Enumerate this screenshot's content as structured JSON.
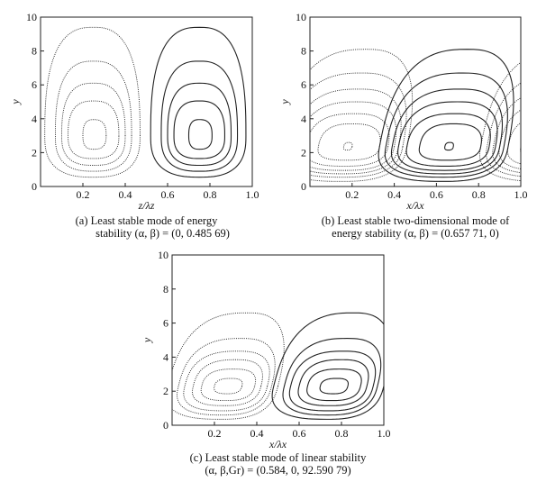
{
  "chart_data": [
    {
      "type": "contour",
      "id": "a",
      "xlabel": "z/λz",
      "ylabel": "y",
      "xlim": [
        0,
        1
      ],
      "ylim": [
        0,
        10
      ],
      "xticks": [
        "0.2",
        "0.4",
        "0.6",
        "0.8",
        "1.0"
      ],
      "yticks": [
        "0",
        "2",
        "4",
        "6",
        "8",
        "10"
      ],
      "caption": [
        "(a) Least stable mode of energy",
        "stability (α, β) = (0, 0.485 69)"
      ],
      "cells": [
        {
          "sign": "negative",
          "style": "dotted",
          "center": [
            0.25,
            3.0
          ],
          "skew": 0,
          "contours": [
            [
              0.2,
              0.31,
              2.2,
              3.95
            ],
            [
              0.13,
              0.37,
              1.65,
              5.05
            ],
            [
              0.1,
              0.4,
              1.25,
              6.1
            ],
            [
              0.07,
              0.43,
              0.9,
              7.4
            ],
            [
              0.02,
              0.47,
              0.55,
              9.4
            ]
          ]
        },
        {
          "sign": "positive",
          "style": "solid",
          "center": [
            0.75,
            3.0
          ],
          "skew": 0,
          "contours": [
            [
              0.7,
              0.81,
              2.2,
              3.95
            ],
            [
              0.63,
              0.87,
              1.65,
              5.05
            ],
            [
              0.6,
              0.9,
              1.25,
              6.1
            ],
            [
              0.57,
              0.93,
              0.9,
              7.4
            ],
            [
              0.52,
              0.97,
              0.55,
              9.4
            ]
          ]
        }
      ]
    },
    {
      "type": "contour",
      "id": "b",
      "xlabel": "x/λx",
      "ylabel": "y",
      "xlim": [
        0,
        1
      ],
      "ylim": [
        0,
        10
      ],
      "xticks": [
        "0.2",
        "0.4",
        "0.6",
        "0.8",
        "1.0"
      ],
      "yticks": [
        "0",
        "2",
        "4",
        "6",
        "8",
        "10"
      ],
      "caption": [
        "(b) Least stable two-dimensional mode of",
        "energy stability (α, β) = (0.657 71, 0)"
      ],
      "cells": [
        {
          "sign": "negative",
          "style": "dotted",
          "center": [
            0.18,
            2.35
          ],
          "skew": 0.015,
          "contours": [
            [
              0.16,
              0.2,
              2.15,
              2.6
            ],
            [
              0.04,
              0.33,
              1.55,
              3.7
            ],
            [
              -0.02,
              0.37,
              1.2,
              4.3
            ],
            [
              -0.06,
              0.4,
              0.95,
              5.0
            ],
            [
              -0.09,
              0.42,
              0.75,
              5.75
            ],
            [
              -0.12,
              0.44,
              0.55,
              6.7
            ],
            [
              -0.15,
              0.46,
              0.3,
              8.1
            ]
          ]
        },
        {
          "sign": "positive",
          "style": "solid",
          "center": [
            0.66,
            2.35
          ],
          "skew": 0.015,
          "contours": [
            [
              0.64,
              0.68,
              2.15,
              2.6
            ],
            [
              0.52,
              0.81,
              1.55,
              3.7
            ],
            [
              0.46,
              0.85,
              1.2,
              4.3
            ],
            [
              0.42,
              0.88,
              0.95,
              5.0
            ],
            [
              0.39,
              0.9,
              0.75,
              5.75
            ],
            [
              0.36,
              0.92,
              0.55,
              6.7
            ],
            [
              0.33,
              0.94,
              0.3,
              8.1
            ]
          ]
        },
        {
          "sign": "negative",
          "style": "dotted",
          "center": [
            1.14,
            2.35
          ],
          "skew": 0.015,
          "contours": [
            [
              1.12,
              1.16,
              2.15,
              2.6
            ],
            [
              1.0,
              1.29,
              1.55,
              3.7
            ],
            [
              0.94,
              1.33,
              1.2,
              4.3
            ],
            [
              0.9,
              1.36,
              0.95,
              5.0
            ],
            [
              0.87,
              1.38,
              0.75,
              5.75
            ],
            [
              0.84,
              1.4,
              0.55,
              6.7
            ],
            [
              0.81,
              1.42,
              0.3,
              8.1
            ]
          ]
        }
      ]
    },
    {
      "type": "contour",
      "id": "c",
      "xlabel": "x/λx",
      "ylabel": "y",
      "xlim": [
        0,
        1
      ],
      "ylim": [
        0,
        10
      ],
      "xticks": [
        "0.2",
        "0.4",
        "0.6",
        "0.8",
        "1.0"
      ],
      "yticks": [
        "0",
        "2",
        "4",
        "6",
        "8",
        "10"
      ],
      "caption": [
        "(c) Least stable mode of linear stability",
        "(α, β,Gr) = (0.584, 0, 92.590 79)"
      ],
      "cells": [
        {
          "sign": "negative",
          "style": "dotted",
          "center": [
            0.27,
            2.3
          ],
          "skew": 0.02,
          "contours": [
            [
              0.2,
              0.33,
              1.85,
              2.75
            ],
            [
              0.14,
              0.39,
              1.45,
              3.3
            ],
            [
              0.1,
              0.42,
              1.15,
              3.85
            ],
            [
              0.06,
              0.45,
              0.85,
              4.35
            ],
            [
              0.03,
              0.47,
              0.6,
              5.1
            ],
            [
              -0.02,
              0.5,
              0.35,
              6.6
            ]
          ]
        },
        {
          "sign": "positive",
          "style": "solid",
          "center": [
            0.77,
            2.3
          ],
          "skew": 0.02,
          "contours": [
            [
              0.7,
              0.83,
              1.85,
              2.75
            ],
            [
              0.64,
              0.89,
              1.45,
              3.3
            ],
            [
              0.6,
              0.92,
              1.15,
              3.85
            ],
            [
              0.56,
              0.95,
              0.85,
              4.35
            ],
            [
              0.53,
              0.97,
              0.6,
              5.1
            ],
            [
              0.48,
              1.0,
              0.35,
              6.6
            ]
          ]
        }
      ]
    }
  ]
}
